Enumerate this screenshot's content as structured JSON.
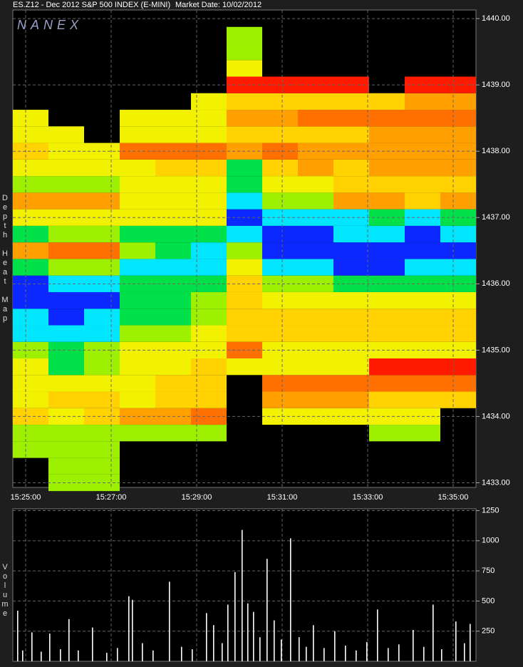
{
  "chart_data": [
    {
      "type": "heatmap",
      "title": "ES.Z12 - Dec 2012 S&P 500 INDEX (E-MINI)",
      "subtitle": "Market Date: 10/02/2012",
      "watermark": "NANEX",
      "ylabel": "Depth Heat Map",
      "time_edges": [
        55482,
        55532,
        55582,
        55632,
        55682,
        55732,
        55782,
        55832,
        55882,
        55932,
        55982,
        56032,
        56082,
        56132
      ],
      "price_edges": [
        1432.875,
        1433.125,
        1433.375,
        1433.625,
        1433.875,
        1434.125,
        1434.375,
        1434.625,
        1434.875,
        1435.125,
        1435.375,
        1435.625,
        1435.875,
        1436.125,
        1436.375,
        1436.625,
        1436.875,
        1437.125,
        1437.375,
        1437.625,
        1437.875,
        1438.125,
        1438.375,
        1438.625,
        1438.875,
        1439.125,
        1439.375,
        1439.625,
        1439.875
      ],
      "colorscale": [
        "#0a28ff",
        "#00e6ff",
        "#00e048",
        "#9cf000",
        "#f2f200",
        "#ffd200",
        "#ffa000",
        "#ff7000",
        "#ff1a00"
      ],
      "values": [
        [
          null,
          3,
          3,
          null,
          null,
          null,
          null,
          null,
          null,
          null,
          null,
          null,
          null
        ],
        [
          null,
          3,
          3,
          null,
          null,
          null,
          null,
          null,
          null,
          null,
          null,
          null,
          null
        ],
        [
          3,
          3,
          3,
          null,
          null,
          null,
          null,
          null,
          null,
          null,
          null,
          null,
          null
        ],
        [
          3,
          3,
          3,
          3,
          3,
          3,
          null,
          null,
          null,
          null,
          3,
          3,
          null
        ],
        [
          5,
          4,
          5,
          6,
          6,
          7,
          null,
          4,
          4,
          4,
          4,
          4,
          null
        ],
        [
          4,
          5,
          5,
          4,
          5,
          5,
          null,
          6,
          6,
          6,
          5,
          5,
          5
        ],
        [
          4,
          4,
          4,
          4,
          5,
          5,
          null,
          7,
          7,
          7,
          7,
          7,
          7
        ],
        [
          4,
          2,
          3,
          4,
          4,
          5,
          4,
          4,
          4,
          4,
          8,
          8,
          8
        ],
        [
          3,
          2,
          3,
          4,
          4,
          4,
          7,
          4,
          4,
          4,
          4,
          4,
          4
        ],
        [
          1,
          1,
          1,
          3,
          3,
          4,
          5,
          5,
          5,
          5,
          5,
          5,
          5
        ],
        [
          1,
          0,
          1,
          2,
          2,
          3,
          5,
          5,
          5,
          5,
          5,
          5,
          5
        ],
        [
          0,
          0,
          0,
          2,
          2,
          3,
          5,
          4,
          4,
          4,
          4,
          4,
          4
        ],
        [
          0,
          1,
          1,
          2,
          2,
          2,
          5,
          3,
          3,
          2,
          2,
          2,
          2
        ],
        [
          2,
          3,
          3,
          1,
          1,
          1,
          4,
          1,
          1,
          0,
          0,
          1,
          1
        ],
        [
          6,
          7,
          7,
          3,
          2,
          1,
          3,
          0,
          0,
          0,
          0,
          0,
          0
        ],
        [
          2,
          3,
          3,
          2,
          2,
          2,
          1,
          0,
          0,
          1,
          1,
          0,
          1
        ],
        [
          4,
          4,
          4,
          4,
          4,
          4,
          0,
          1,
          1,
          1,
          2,
          1,
          2
        ],
        [
          6,
          6,
          6,
          4,
          4,
          4,
          1,
          3,
          3,
          6,
          6,
          5,
          6
        ],
        [
          3,
          3,
          3,
          4,
          4,
          4,
          2,
          4,
          4,
          5,
          5,
          5,
          5
        ],
        [
          4,
          4,
          4,
          4,
          5,
          5,
          2,
          5,
          6,
          5,
          6,
          6,
          6
        ],
        [
          5,
          4,
          4,
          7,
          7,
          7,
          6,
          7,
          6,
          6,
          6,
          6,
          6
        ],
        [
          4,
          4,
          null,
          4,
          4,
          4,
          5,
          5,
          5,
          5,
          6,
          6,
          6
        ],
        [
          4,
          null,
          null,
          4,
          4,
          4,
          6,
          6,
          7,
          7,
          7,
          7,
          7
        ],
        [
          null,
          null,
          null,
          null,
          null,
          4,
          5,
          5,
          5,
          5,
          5,
          6,
          6
        ],
        [
          null,
          null,
          null,
          null,
          null,
          null,
          8,
          8,
          8,
          8,
          null,
          8,
          8
        ],
        [
          null,
          null,
          null,
          null,
          null,
          null,
          4,
          null,
          null,
          null,
          null,
          null,
          null
        ],
        [
          null,
          null,
          null,
          null,
          null,
          null,
          3,
          null,
          null,
          null,
          null,
          null,
          null
        ],
        [
          null,
          null,
          null,
          null,
          null,
          null,
          3,
          null,
          null,
          null,
          null,
          null,
          null
        ]
      ],
      "xlim": [
        55482,
        56132
      ],
      "xticks": [
        {
          "value": 55500,
          "label": "15:25:00"
        },
        {
          "value": 55620,
          "label": "15:27:00"
        },
        {
          "value": 55740,
          "label": "15:29:00"
        },
        {
          "value": 55860,
          "label": "15:31:00"
        },
        {
          "value": 55980,
          "label": "15:33:00"
        },
        {
          "value": 56100,
          "label": "15:35:00"
        }
      ],
      "ylim": [
        1432.93,
        1440.13
      ],
      "yticks": [
        {
          "value": 1433,
          "label": "1433.00"
        },
        {
          "value": 1434,
          "label": "1434.00"
        },
        {
          "value": 1435,
          "label": "1435.00"
        },
        {
          "value": 1436,
          "label": "1436.00"
        },
        {
          "value": 1437,
          "label": "1437.00"
        },
        {
          "value": 1438,
          "label": "1438.00"
        },
        {
          "value": 1439,
          "label": "1439.00"
        },
        {
          "value": 1440,
          "label": "1440.00"
        }
      ],
      "grid": true
    },
    {
      "type": "volume",
      "ylabel": "Volume",
      "color": "#ffffff",
      "x": [
        55489,
        55496,
        55509,
        55522,
        55534,
        55549,
        55561,
        55574,
        55594,
        55614,
        55629,
        55645,
        55650,
        55664,
        55679,
        55702,
        55719,
        55734,
        55754,
        55764,
        55776,
        55784,
        55794,
        55804,
        55812,
        55820,
        55829,
        55839,
        55849,
        55859,
        55872,
        55884,
        55894,
        55904,
        55919,
        55934,
        55949,
        55964,
        55979,
        55994,
        56009,
        56024,
        56044,
        56059,
        56072,
        56084,
        56104,
        56116,
        56124
      ],
      "values": [
        420,
        90,
        240,
        80,
        230,
        100,
        350,
        90,
        280,
        70,
        110,
        540,
        510,
        150,
        90,
        660,
        120,
        100,
        400,
        300,
        150,
        470,
        740,
        1090,
        480,
        410,
        200,
        850,
        340,
        180,
        1020,
        200,
        120,
        300,
        110,
        250,
        130,
        90,
        160,
        430,
        110,
        140,
        260,
        120,
        470,
        100,
        330,
        150,
        310
      ],
      "xlim": [
        55482,
        56132
      ],
      "ylim": [
        0,
        1265
      ],
      "yticks": [
        250,
        500,
        750,
        1000,
        1250
      ],
      "grid": true
    }
  ]
}
